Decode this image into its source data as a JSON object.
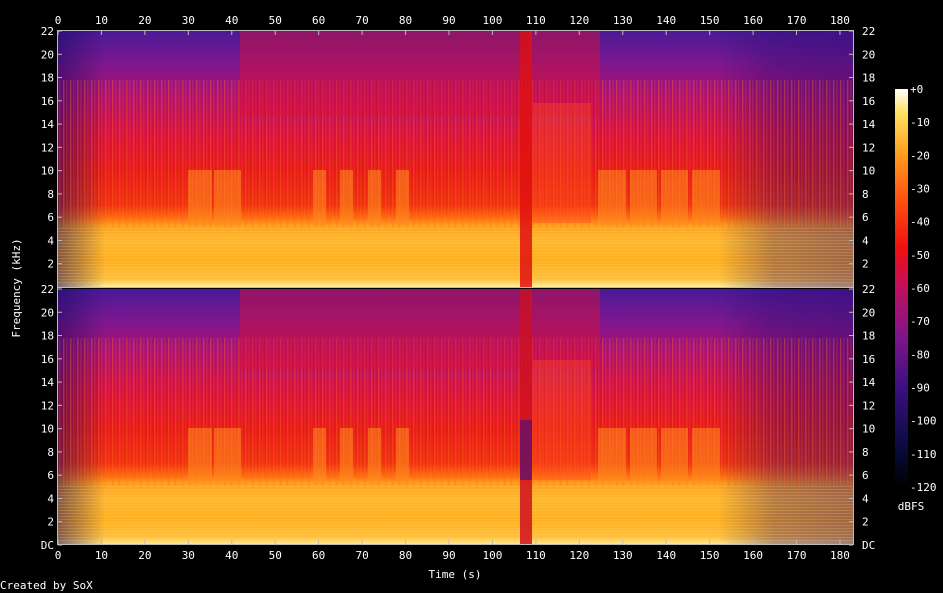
{
  "chart_data": {
    "type": "heatmap",
    "title": "",
    "xlabel": "Time (s)",
    "ylabel": "Frequency (kHz)",
    "xlim": [
      0,
      183
    ],
    "ylim_khz": [
      0,
      22
    ],
    "x_ticks": [
      "0",
      "10",
      "20",
      "30",
      "40",
      "50",
      "60",
      "70",
      "80",
      "90",
      "100",
      "110",
      "120",
      "130",
      "140",
      "150",
      "160",
      "170",
      "180"
    ],
    "y_ticks": [
      "DC",
      "2",
      "4",
      "6",
      "8",
      "10",
      "12",
      "14",
      "16",
      "18",
      "20",
      "22"
    ],
    "channels": 2,
    "colorbar": {
      "label": "dBFS",
      "ticks": [
        "+0",
        "-10",
        "-20",
        "-30",
        "-40",
        "-50",
        "-60",
        "-70",
        "-80",
        "-90",
        "-100",
        "-110",
        "-120"
      ],
      "range_db": [
        -120,
        0
      ]
    },
    "footer": "Created by SoX"
  }
}
